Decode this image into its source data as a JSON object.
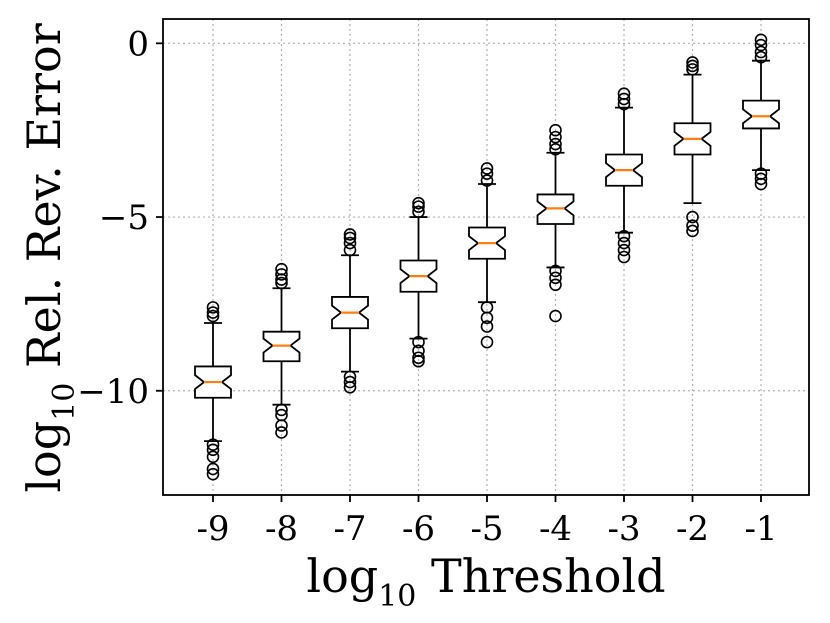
{
  "chart_data": {
    "type": "boxplot",
    "title": "",
    "xlabel_main": "log",
    "xlabel_sub": "10",
    "xlabel_rest": " Threshold",
    "ylabel_main": "log",
    "ylabel_sub": "10",
    "ylabel_rest": " Rel. Rev. Error",
    "ylim": [
      -13,
      0.7
    ],
    "yticks": [
      0,
      -5,
      -10
    ],
    "ytick_labels": [
      "0",
      "−5",
      "−10"
    ],
    "grid": true,
    "notched": true,
    "categories": [
      "-9",
      "-8",
      "-7",
      "-6",
      "-5",
      "-4",
      "-3",
      "-2",
      "-1"
    ],
    "boxes": [
      {
        "q1": -10.2,
        "median": -9.75,
        "q3": -9.3,
        "whisker_low": -11.45,
        "whisker_high": -8.05,
        "notch_half": 0.2,
        "fliers": [
          -7.6,
          -7.75,
          -7.85,
          -11.55,
          -11.7,
          -11.9,
          -12.25,
          -12.4
        ]
      },
      {
        "q1": -9.15,
        "median": -8.7,
        "q3": -8.3,
        "whisker_low": -10.4,
        "whisker_high": -7.05,
        "notch_half": 0.2,
        "fliers": [
          -6.5,
          -6.65,
          -6.8,
          -6.9,
          -10.55,
          -10.7,
          -11.0,
          -11.2
        ]
      },
      {
        "q1": -8.2,
        "median": -7.75,
        "q3": -7.3,
        "whisker_low": -9.45,
        "whisker_high": -6.1,
        "notch_half": 0.2,
        "fliers": [
          -5.5,
          -5.6,
          -5.75,
          -5.95,
          -9.6,
          -9.75,
          -9.9
        ]
      },
      {
        "q1": -7.15,
        "median": -6.7,
        "q3": -6.25,
        "whisker_low": -8.5,
        "whisker_high": -5.0,
        "notch_half": 0.2,
        "fliers": [
          -4.6,
          -4.7,
          -4.85,
          -8.6,
          -8.85,
          -9.05,
          -9.15
        ]
      },
      {
        "q1": -6.2,
        "median": -5.75,
        "q3": -5.3,
        "whisker_low": -7.45,
        "whisker_high": -4.05,
        "notch_half": 0.2,
        "fliers": [
          -3.6,
          -3.75,
          -3.95,
          -7.6,
          -7.9,
          -8.15,
          -8.6
        ]
      },
      {
        "q1": -5.2,
        "median": -4.75,
        "q3": -4.35,
        "whisker_low": -6.45,
        "whisker_high": -3.15,
        "notch_half": 0.2,
        "fliers": [
          -2.5,
          -2.7,
          -2.9,
          -3.05,
          -6.55,
          -6.75,
          -6.95,
          -7.85
        ]
      },
      {
        "q1": -4.1,
        "median": -3.65,
        "q3": -3.2,
        "whisker_low": -5.45,
        "whisker_high": -1.85,
        "notch_half": 0.2,
        "fliers": [
          -1.45,
          -1.6,
          -1.75,
          -5.55,
          -5.75,
          -5.95,
          -6.15
        ]
      },
      {
        "q1": -3.2,
        "median": -2.75,
        "q3": -2.3,
        "whisker_low": -4.6,
        "whisker_high": -0.9,
        "notch_half": 0.2,
        "fliers": [
          -0.55,
          -0.65,
          -0.75,
          -5.0,
          -5.25,
          -5.4
        ]
      },
      {
        "q1": -2.45,
        "median": -2.1,
        "q3": -1.65,
        "whisker_low": -3.65,
        "whisker_high": -0.5,
        "notch_half": 0.2,
        "fliers": [
          0.1,
          -0.05,
          -0.25,
          -0.4,
          -3.75,
          -3.9,
          -4.05
        ]
      }
    ]
  }
}
